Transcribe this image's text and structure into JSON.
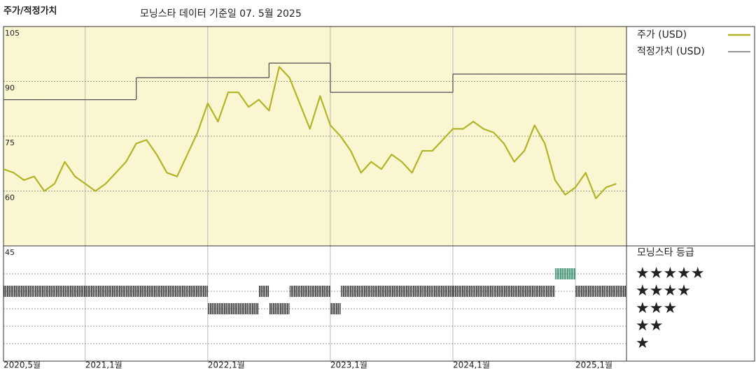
{
  "chart_data": [
    {
      "type": "line",
      "title": "주가/적정가치",
      "subtitle": "모닝스타 데이터 기준일 07. 5월 2025",
      "x": [
        "2020-05",
        "2020-06",
        "2020-07",
        "2020-08",
        "2020-09",
        "2020-10",
        "2020-11",
        "2020-12",
        "2021-01",
        "2021-02",
        "2021-03",
        "2021-04",
        "2021-05",
        "2021-06",
        "2021-07",
        "2021-08",
        "2021-09",
        "2021-10",
        "2021-11",
        "2021-12",
        "2022-01",
        "2022-02",
        "2022-03",
        "2022-04",
        "2022-05",
        "2022-06",
        "2022-07",
        "2022-08",
        "2022-09",
        "2022-10",
        "2022-11",
        "2022-12",
        "2023-01",
        "2023-02",
        "2023-03",
        "2023-04",
        "2023-05",
        "2023-06",
        "2023-07",
        "2023-08",
        "2023-09",
        "2023-10",
        "2023-11",
        "2023-12",
        "2024-01",
        "2024-02",
        "2024-03",
        "2024-04",
        "2024-05",
        "2024-06",
        "2024-07",
        "2024-08",
        "2024-09",
        "2024-10",
        "2024-11",
        "2024-12",
        "2025-01",
        "2025-02",
        "2025-03",
        "2025-04",
        "2025-05"
      ],
      "series": [
        {
          "name": "주가 (USD)",
          "color": "#b3b326",
          "values": [
            66,
            65,
            63,
            64,
            60,
            62,
            68,
            64,
            62,
            60,
            62,
            65,
            68,
            73,
            74,
            70,
            65,
            64,
            70,
            76,
            84,
            79,
            87,
            87,
            83,
            85,
            82,
            94,
            91,
            84,
            77,
            86,
            78,
            75,
            71,
            65,
            68,
            66,
            70,
            68,
            65,
            71,
            71,
            74,
            77,
            77,
            79,
            77,
            76,
            73,
            68,
            71,
            78,
            73,
            63,
            59,
            61,
            65,
            58,
            61,
            62
          ]
        },
        {
          "name": "적정가치 (USD)",
          "color": "#555555",
          "step": true,
          "values": [
            85,
            85,
            85,
            85,
            85,
            85,
            85,
            85,
            85,
            85,
            85,
            85,
            85,
            91,
            91,
            91,
            91,
            91,
            91,
            91,
            91,
            91,
            91,
            91,
            91,
            91,
            95,
            95,
            95,
            95,
            95,
            95,
            87,
            87,
            87,
            87,
            87,
            87,
            87,
            87,
            87,
            87,
            87,
            87,
            92,
            92,
            92,
            92,
            92,
            92,
            92,
            92,
            92,
            92,
            92,
            92,
            92,
            92,
            92,
            92,
            92
          ]
        }
      ],
      "xlim": [
        "2020-05",
        "2025-06"
      ],
      "xticks": [
        {
          "value": "2020-05",
          "label": "2020,5월"
        },
        {
          "value": "2021-01",
          "label": "2021,1월"
        },
        {
          "value": "2022-01",
          "label": "2022,1월"
        },
        {
          "value": "2023-01",
          "label": "2023,1월"
        },
        {
          "value": "2024-01",
          "label": "2024,1월"
        },
        {
          "value": "2025-01",
          "label": "2025,1월"
        }
      ],
      "ylim": [
        45,
        105
      ],
      "yticks": [
        45,
        60,
        75,
        90,
        105
      ],
      "grid": true
    },
    {
      "type": "rating",
      "title": "모닝스타 등급",
      "x": [
        "2020-05",
        "2020-06",
        "2020-07",
        "2020-08",
        "2020-09",
        "2020-10",
        "2020-11",
        "2020-12",
        "2021-01",
        "2021-02",
        "2021-03",
        "2021-04",
        "2021-05",
        "2021-06",
        "2021-07",
        "2021-08",
        "2021-09",
        "2021-10",
        "2021-11",
        "2021-12",
        "2022-01",
        "2022-02",
        "2022-03",
        "2022-04",
        "2022-05",
        "2022-06",
        "2022-07",
        "2022-08",
        "2022-09",
        "2022-10",
        "2022-11",
        "2022-12",
        "2023-01",
        "2023-02",
        "2023-03",
        "2023-04",
        "2023-05",
        "2023-06",
        "2023-07",
        "2023-08",
        "2023-09",
        "2023-10",
        "2023-11",
        "2023-12",
        "2024-01",
        "2024-02",
        "2024-03",
        "2024-04",
        "2024-05",
        "2024-06",
        "2024-07",
        "2024-08",
        "2024-09",
        "2024-10",
        "2024-11",
        "2024-12",
        "2025-01",
        "2025-02",
        "2025-03",
        "2025-04",
        "2025-05"
      ],
      "values": [
        4,
        4,
        4,
        4,
        4,
        4,
        4,
        4,
        4,
        4,
        4,
        4,
        4,
        4,
        4,
        4,
        4,
        4,
        4,
        4,
        3,
        3,
        3,
        3,
        3,
        4,
        3,
        3,
        4,
        4,
        4,
        4,
        3,
        4,
        4,
        4,
        4,
        4,
        4,
        4,
        4,
        4,
        4,
        4,
        4,
        4,
        4,
        4,
        4,
        4,
        4,
        4,
        4,
        4,
        5,
        5,
        4,
        4,
        4,
        4,
        4
      ],
      "levels": [
        {
          "value": 5,
          "label": "★★★★★"
        },
        {
          "value": 4,
          "label": "★★★★"
        },
        {
          "value": 3,
          "label": "★★★"
        },
        {
          "value": 2,
          "label": "★★"
        },
        {
          "value": 1,
          "label": "★"
        }
      ],
      "colors": [
        "#2f8a66",
        "#333333",
        "#333333",
        "#333333",
        "#333333"
      ]
    }
  ]
}
